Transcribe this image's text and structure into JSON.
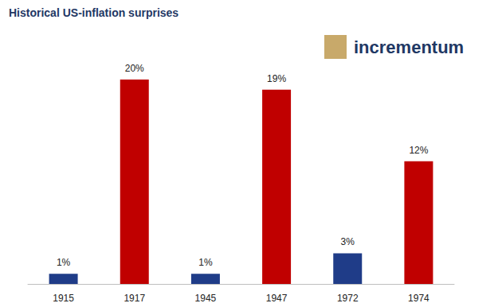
{
  "chart_data": {
    "type": "bar",
    "title": "Historical US-inflation surprises",
    "annotations": [
      "incrementum"
    ],
    "categories": [
      "1915",
      "1917",
      "1945",
      "1947",
      "1972",
      "1974"
    ],
    "values": [
      1,
      20,
      1,
      19,
      3,
      12
    ],
    "value_labels": [
      "1%",
      "20%",
      "1%",
      "19%",
      "3%",
      "12%"
    ],
    "colors": [
      "#1f3c88",
      "#c00000",
      "#1f3c88",
      "#c00000",
      "#1f3c88",
      "#c00000"
    ],
    "data_labels": true,
    "tick_labels": "x",
    "grid": false
  }
}
